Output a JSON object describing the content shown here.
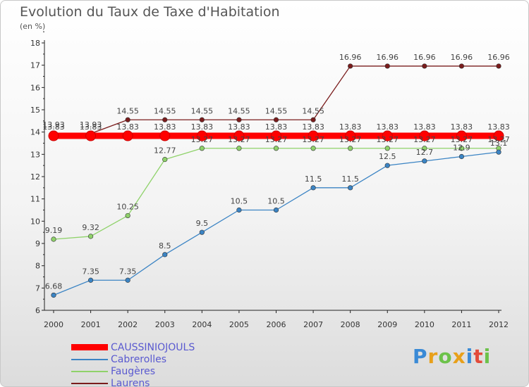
{
  "chart": {
    "title": "Evolution du Taux de Taxe d'Habitation",
    "subtitle": "(en %)",
    "logo": "Proxiti"
  },
  "chart_data": {
    "type": "line",
    "title": "Evolution du Taux de Taxe d'Habitation",
    "subtitle": "(en %)",
    "xlabel": "",
    "ylabel": "",
    "x": [
      "2000",
      "2001",
      "2002",
      "2003",
      "2004",
      "2005",
      "2006",
      "2007",
      "2008",
      "2009",
      "2010",
      "2011",
      "2012"
    ],
    "ylim": [
      6,
      18
    ],
    "yticks": [
      6,
      7,
      8,
      9,
      10,
      11,
      12,
      13,
      14,
      15,
      16,
      17,
      18
    ],
    "grid": false,
    "legend_position": "bottom-left",
    "series": [
      {
        "name": "CAUSSINIOJOULS",
        "color": "#ff0000",
        "values": [
          13.83,
          13.83,
          13.83,
          13.83,
          13.83,
          13.83,
          13.83,
          13.83,
          13.83,
          13.83,
          13.83,
          13.83,
          13.83
        ],
        "labels": [
          "13.83",
          "13.83",
          "13.83",
          "13.83",
          "13.83",
          "13.83",
          "13.83",
          "13.83",
          "13.83",
          "13.83",
          "13.83",
          "13.83",
          "13.83"
        ]
      },
      {
        "name": "Cabrerolles",
        "color": "#3b84c4",
        "values": [
          6.68,
          7.35,
          7.35,
          8.5,
          9.5,
          10.5,
          10.5,
          11.5,
          11.5,
          12.5,
          12.7,
          12.9,
          13.1
        ],
        "labels": [
          "6.68",
          "7.35",
          "7.35",
          "8.5",
          "9.5",
          "10.5",
          "10.5",
          "11.5",
          "11.5",
          "12.5",
          "12.7",
          "12.9",
          "13.1"
        ]
      },
      {
        "name": "Faugères",
        "color": "#8fd26a",
        "values": [
          9.19,
          9.32,
          10.25,
          12.77,
          13.27,
          13.27,
          13.27,
          13.27,
          13.27,
          13.27,
          13.27,
          13.27,
          13.27
        ],
        "labels": [
          "9.19",
          "9.32",
          "10.25",
          "12.77",
          "13.27",
          "13.27",
          "13.27",
          "13.27",
          "13.27",
          "13.27",
          "13.27",
          "13.27",
          "13.27"
        ]
      },
      {
        "name": "Laurens",
        "color": "#7a1c1c",
        "values": [
          13.93,
          13.93,
          14.55,
          14.55,
          14.55,
          14.55,
          14.55,
          14.55,
          16.96,
          16.96,
          16.96,
          16.96,
          16.96
        ],
        "labels": [
          "13.93",
          "13.93",
          "14.55",
          "14.55",
          "14.55",
          "14.55",
          "14.55",
          "14.55",
          "16.96",
          "16.96",
          "16.96",
          "16.96",
          "16.96"
        ]
      }
    ]
  }
}
